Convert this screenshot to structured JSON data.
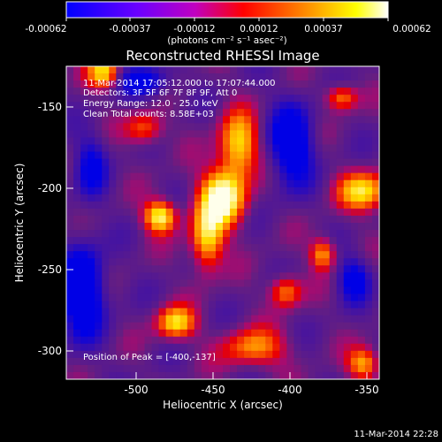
{
  "colorbar": {
    "ticks": [
      "-0.00062",
      "-0.00037",
      "-0.00012",
      "0.00012",
      "0.00037",
      "0.00062"
    ],
    "units_label": "(photons cm⁻² s⁻¹ asec⁻²)"
  },
  "plot": {
    "title": "Reconstructed RHESSI Image",
    "xlabel": "Heliocentric X (arcsec)",
    "ylabel": "Heliocentric Y (arcsec)",
    "xticks": [
      "-500",
      "-450",
      "-400",
      "-350"
    ],
    "yticks": [
      "-150",
      "-200",
      "-250",
      "-300"
    ]
  },
  "info": {
    "line1": "11-Mar-2014 17:05:12.000 to 17:07:44.000",
    "line2": "Detectors: 3F 5F 6F 7F 8F 9F, Att 0",
    "line3": "Energy Range: 12.0 - 25.0 keV",
    "line4": "Clean      Total counts: 8.58E+03",
    "peak": "Position of Peak = [-400,-137]"
  },
  "timestamp": "11-Mar-2014 22:28",
  "colors": {
    "background": "#000000",
    "text": "#ffffff"
  }
}
